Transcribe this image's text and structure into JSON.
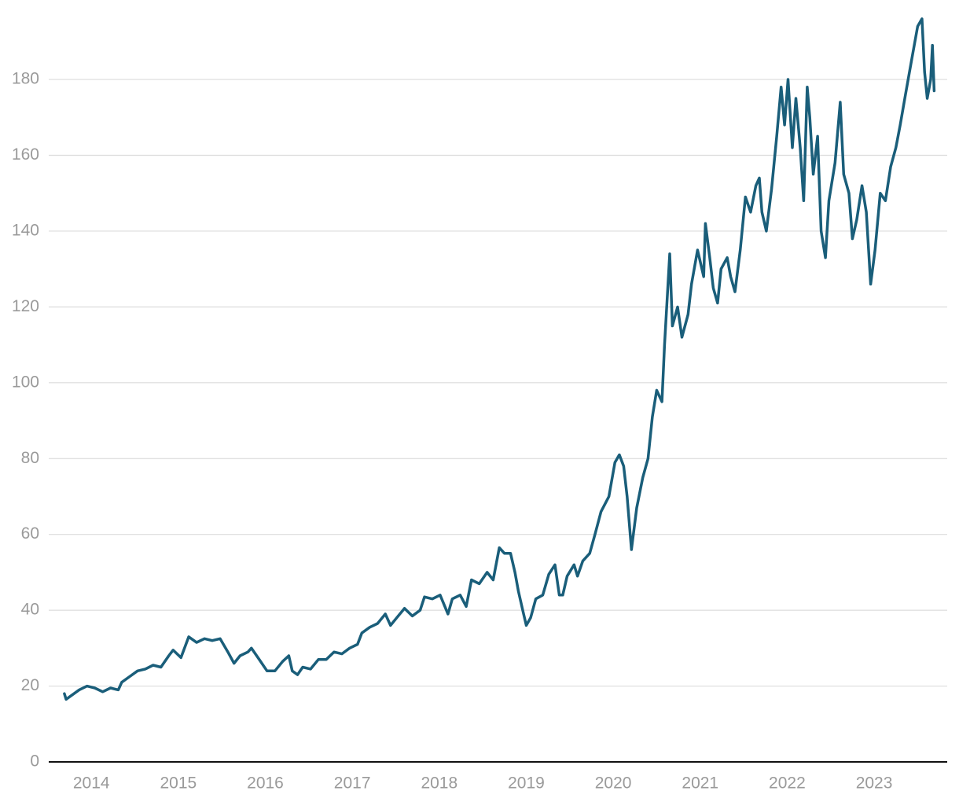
{
  "chart_data": {
    "type": "line",
    "color": "#1a5e7a",
    "grid": true,
    "xlim": [
      2013.51,
      2023.84
    ],
    "xticks": [
      2014,
      2015,
      2016,
      2017,
      2018,
      2019,
      2020,
      2021,
      2022,
      2023
    ],
    "ylim": [
      0,
      200
    ],
    "yticks": [
      0,
      20,
      40,
      60,
      80,
      100,
      120,
      140,
      160,
      180
    ],
    "x": [
      2013.69,
      2013.71,
      2013.77,
      2013.86,
      2013.95,
      2014.04,
      2014.13,
      2014.22,
      2014.31,
      2014.35,
      2014.44,
      2014.53,
      2014.62,
      2014.71,
      2014.8,
      2014.89,
      2014.94,
      2015.03,
      2015.12,
      2015.21,
      2015.3,
      2015.39,
      2015.48,
      2015.57,
      2015.64,
      2015.71,
      2015.8,
      2015.84,
      2015.93,
      2016.02,
      2016.11,
      2016.2,
      2016.27,
      2016.31,
      2016.37,
      2016.43,
      2016.52,
      2016.61,
      2016.7,
      2016.79,
      2016.88,
      2016.97,
      2017.06,
      2017.11,
      2017.2,
      2017.29,
      2017.38,
      2017.44,
      2017.51,
      2017.6,
      2017.69,
      2017.78,
      2017.83,
      2017.92,
      2018.01,
      2018.1,
      2018.15,
      2018.24,
      2018.31,
      2018.37,
      2018.46,
      2018.55,
      2018.62,
      2018.69,
      2018.75,
      2018.82,
      2018.87,
      2018.91,
      2018.96,
      2019.0,
      2019.05,
      2019.11,
      2019.19,
      2019.26,
      2019.33,
      2019.38,
      2019.42,
      2019.47,
      2019.55,
      2019.59,
      2019.65,
      2019.73,
      2019.79,
      2019.86,
      2019.95,
      2020.02,
      2020.07,
      2020.12,
      2020.16,
      2020.21,
      2020.27,
      2020.34,
      2020.4,
      2020.45,
      2020.5,
      2020.56,
      2020.59,
      2020.65,
      2020.68,
      2020.74,
      2020.79,
      2020.86,
      2020.9,
      2020.97,
      2021.04,
      2021.06,
      2021.11,
      2021.15,
      2021.2,
      2021.24,
      2021.31,
      2021.35,
      2021.4,
      2021.46,
      2021.52,
      2021.58,
      2021.64,
      2021.68,
      2021.71,
      2021.76,
      2021.82,
      2021.88,
      2021.93,
      2021.97,
      2022.01,
      2022.06,
      2022.1,
      2022.15,
      2022.19,
      2022.23,
      2022.26,
      2022.3,
      2022.35,
      2022.39,
      2022.44,
      2022.48,
      2022.55,
      2022.61,
      2022.65,
      2022.71,
      2022.75,
      2022.8,
      2022.86,
      2022.91,
      2022.96,
      2023.01,
      2023.07,
      2023.13,
      2023.19,
      2023.25,
      2023.3,
      2023.36,
      2023.43,
      2023.5,
      2023.55,
      2023.58,
      2023.61,
      2023.65,
      2023.67,
      2023.69
    ],
    "values": [
      18,
      16.5,
      17.5,
      19,
      20,
      19.5,
      18.5,
      19.5,
      19,
      21,
      22.5,
      24,
      24.5,
      25.5,
      25,
      28,
      29.5,
      27.5,
      33,
      31.5,
      32.5,
      32,
      32.5,
      29,
      26,
      28,
      29,
      30,
      27,
      24,
      24,
      26.5,
      28,
      24,
      23,
      25,
      24.5,
      27,
      27,
      29,
      28.5,
      30,
      31,
      34,
      35.5,
      36.5,
      39,
      36,
      38,
      40.5,
      38.5,
      40,
      43.5,
      43,
      44,
      39,
      43,
      44,
      41,
      48,
      47,
      50,
      48,
      56.5,
      55,
      55,
      50,
      45,
      40,
      36,
      38,
      43,
      44,
      49.5,
      52,
      44,
      44,
      49,
      52,
      49,
      53,
      55,
      60,
      66,
      70,
      79,
      81,
      78,
      70,
      56,
      67,
      75,
      80,
      91,
      98,
      95,
      110,
      134,
      115,
      120,
      112,
      118,
      126,
      135,
      128,
      142,
      133,
      125,
      121,
      130,
      133,
      128,
      124,
      135,
      149,
      145,
      152,
      154,
      145,
      140,
      151,
      165,
      178,
      168,
      180,
      162,
      175,
      162,
      148,
      178,
      170,
      155,
      165,
      140,
      133,
      148,
      158,
      174,
      155,
      150,
      138,
      143,
      152,
      145,
      126,
      135,
      150,
      148,
      157,
      162,
      168,
      176,
      185,
      194,
      196,
      182,
      175,
      180,
      189,
      177
    ]
  }
}
